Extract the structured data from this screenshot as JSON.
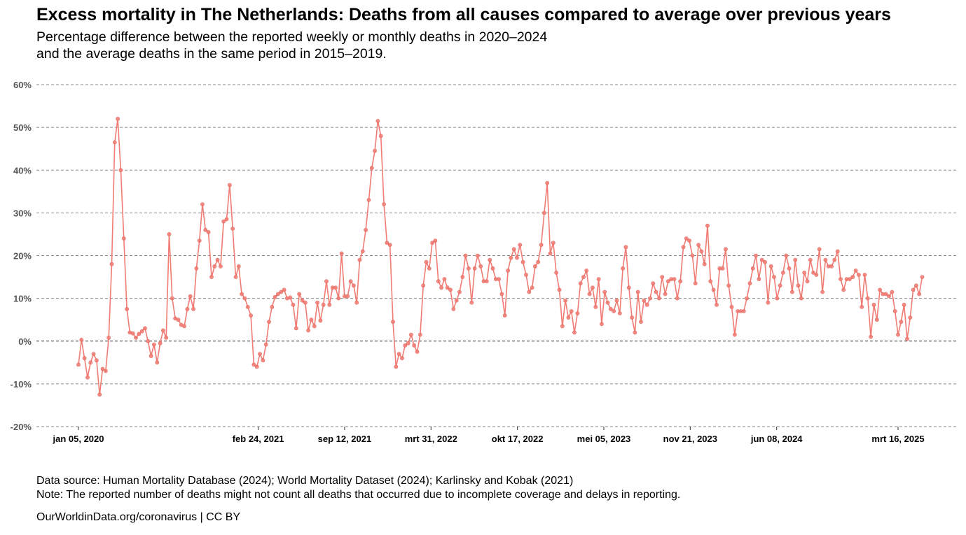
{
  "chart_data": {
    "type": "line",
    "title": "Excess mortality in The Netherlands: Deaths from all causes compared to average over previous years",
    "subtitle_lines": [
      "Percentage difference between the reported weekly or monthly deaths in 2020–2024",
      "and the average deaths in the same period in 2015–2019."
    ],
    "xlabel": "",
    "ylabel": "",
    "ylim": [
      -20,
      60
    ],
    "y_ticks": [
      60,
      50,
      40,
      30,
      20,
      10,
      0,
      -10,
      -20
    ],
    "y_tick_labels": [
      "60%",
      "50%",
      "40%",
      "30%",
      "20%",
      "10%",
      "0%",
      "-10%",
      "-20%"
    ],
    "x_ticks": [
      {
        "label": "jan 05, 2020",
        "date": "2020-01-05"
      },
      {
        "label": "feb 24, 2021",
        "date": "2021-02-24"
      },
      {
        "label": "sep 12, 2021",
        "date": "2021-09-12"
      },
      {
        "label": "mrt 31, 2022",
        "date": "2022-03-31"
      },
      {
        "label": "okt 17, 2022",
        "date": "2022-10-17"
      },
      {
        "label": "mei 05, 2023",
        "date": "2023-05-05"
      },
      {
        "label": "nov 21, 2023",
        "date": "2023-11-21"
      },
      {
        "label": "jun 08, 2024",
        "date": "2024-06-08"
      },
      {
        "label": "mrt 16, 2025",
        "date": "2025-03-16"
      }
    ],
    "grid": "horizontal dashed",
    "legend": "none",
    "series": [
      {
        "color": "#f07c74",
        "start_date": "2020-01-05",
        "interval": "weekly",
        "values": [
          -5.5,
          0.3,
          -4,
          -8.5,
          -5,
          -3,
          -4.5,
          -12.5,
          -6.5,
          -7,
          0.8,
          18,
          46.5,
          52,
          40,
          24,
          7.5,
          2,
          1.8,
          0.8,
          1.7,
          2.3,
          3,
          0,
          -3.5,
          -0.8,
          -5,
          -0.5,
          2.5,
          0.8,
          25,
          10,
          5.3,
          5,
          3.8,
          3.5,
          7.5,
          10.5,
          7.5,
          17,
          23.5,
          32,
          26,
          25.5,
          15,
          17.5,
          19,
          17.5,
          28,
          28.5,
          36.5,
          26.3,
          15,
          17.5,
          11,
          10,
          8,
          6,
          -5.5,
          -6,
          -3,
          -4.5,
          -0.8,
          4.5,
          8,
          10.3,
          11,
          11.5,
          12,
          10,
          10.2,
          8.5,
          3,
          11,
          9.5,
          9,
          2.5,
          5,
          3.5,
          9,
          4.8,
          8.5,
          14,
          8.5,
          12.5,
          12.5,
          10,
          20.5,
          10.5,
          10.5,
          14,
          13,
          9,
          19,
          21,
          26,
          33,
          40.5,
          44.5,
          51.5,
          48,
          32,
          23,
          22.5,
          4.5,
          -6,
          -3,
          -4,
          -1,
          -0.5,
          1.5,
          -1,
          -2.5,
          1.5,
          13,
          18.5,
          17,
          23,
          23.5,
          14,
          12.5,
          14.5,
          12.5,
          12,
          7.5,
          9.5,
          11.5,
          15,
          20,
          17,
          9,
          17,
          20,
          17.5,
          14,
          14,
          19,
          17,
          14.5,
          14.5,
          11,
          6,
          16.5,
          19.5,
          21.5,
          19.5,
          22.5,
          18.5,
          15.5,
          11.5,
          12.5,
          17.5,
          18.5,
          22.5,
          30,
          37,
          20.5,
          23,
          16,
          12,
          3.5,
          9.5,
          5.5,
          7,
          2,
          6.5,
          13.5,
          15,
          16.5,
          11,
          12.5,
          8,
          14.5,
          4,
          11.5,
          9,
          7.5,
          7,
          9.5,
          6.5,
          17,
          22,
          12.5,
          5.5,
          2,
          11.5,
          4.5,
          9.5,
          8.5,
          10,
          13.5,
          11.5,
          10,
          15,
          11,
          14,
          14.5,
          14.5,
          10,
          14,
          22,
          24,
          23.5,
          20,
          13.5,
          22.5,
          21,
          18,
          27,
          14,
          12,
          8.5,
          17,
          17,
          21.5,
          13,
          8,
          1.5,
          7,
          7,
          7,
          10,
          13.5,
          17,
          20,
          14.5,
          19,
          18.5,
          9,
          17.5,
          15,
          10,
          13,
          16,
          20,
          17,
          11.5,
          19,
          13,
          10,
          16,
          14,
          19,
          16,
          15.5,
          21.5,
          11.5,
          19,
          17.5,
          17.5,
          19,
          21,
          14.5,
          12,
          14.5,
          14.5,
          15,
          16.5,
          15.5,
          8,
          15.5,
          10,
          1,
          8.5,
          5,
          12,
          11,
          11,
          10.5,
          11.5,
          7,
          1.5,
          4.5,
          8.5,
          0.5,
          5.5,
          12,
          13,
          11,
          15
        ]
      }
    ]
  },
  "footer": {
    "source": "Data source: Human Mortality Database (2024); World Mortality Dataset (2024); Karlinsky and Kobak (2021)",
    "note": "Note: The reported number of deaths might not count all deaths that occurred due to incomplete coverage and delays in reporting.",
    "credit": "OurWorldinData.org/coronavirus | CC BY"
  }
}
